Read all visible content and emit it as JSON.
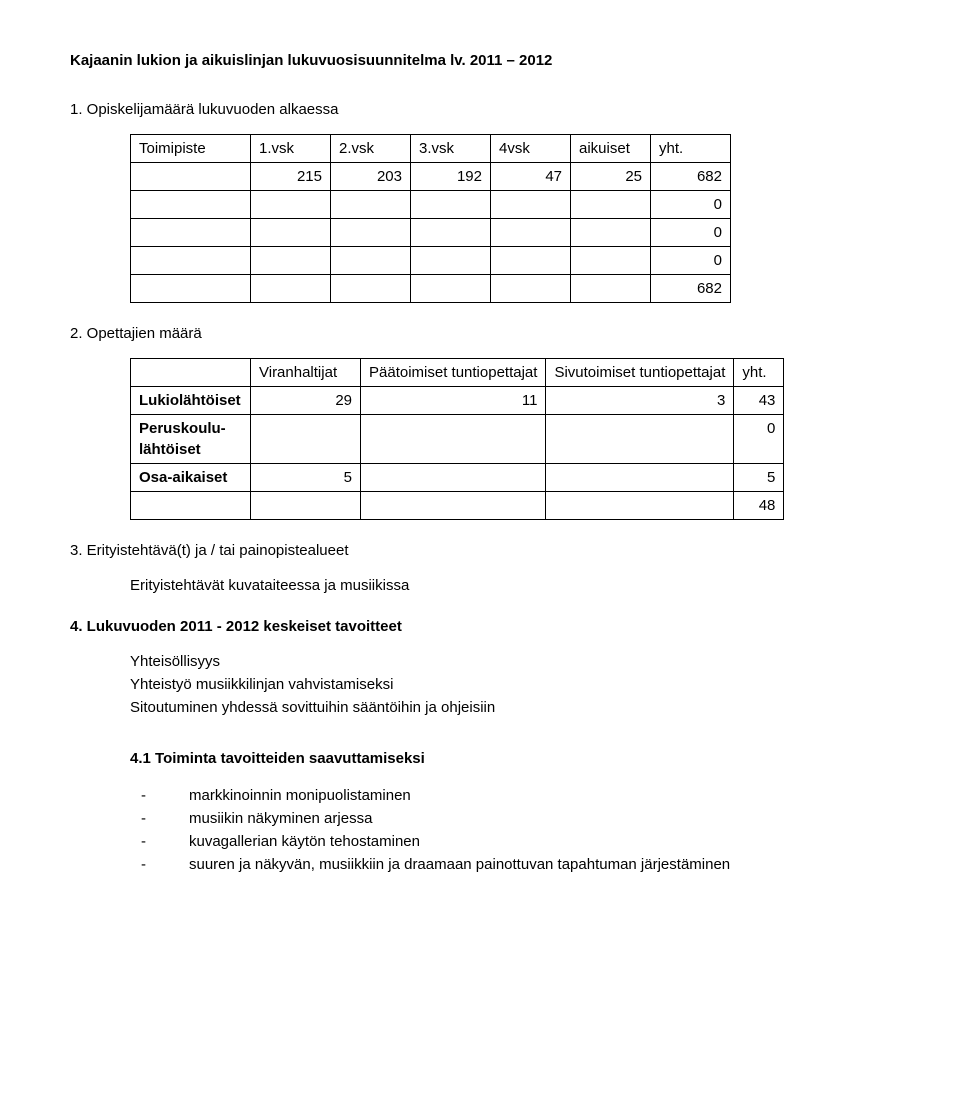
{
  "title": "Kajaanin lukion ja aikuislinjan lukuvuosisuunnitelma lv. 2011 – 2012",
  "sections": {
    "s1": "1. Opiskelijamäärä lukuvuoden alkaessa",
    "s2": "2. Opettajien määrä",
    "s3": "3. Erityistehtävä(t) ja / tai painopistealueet",
    "s4": "4. Lukuvuoden 2011 - 2012 keskeiset tavoitteet",
    "s41": "4.1 Toiminta tavoitteiden saavuttamiseksi"
  },
  "table1": {
    "headers": [
      "Toimipiste",
      "1.vsk",
      "2.vsk",
      "3.vsk",
      "4vsk",
      "aikuiset",
      "yht."
    ],
    "rows": [
      [
        "",
        "215",
        "203",
        "192",
        "47",
        "25",
        "682"
      ],
      [
        "",
        "",
        "",
        "",
        "",
        "",
        "0"
      ],
      [
        "",
        "",
        "",
        "",
        "",
        "",
        "0"
      ],
      [
        "",
        "",
        "",
        "",
        "",
        "",
        "0"
      ],
      [
        "",
        "",
        "",
        "",
        "",
        "",
        "682"
      ]
    ]
  },
  "table2": {
    "headers": [
      "",
      "Viranhaltijat",
      "Päätoimiset tuntiopettajat",
      "Sivutoimiset tuntiopettajat",
      "yht."
    ],
    "rows": [
      {
        "label": "Lukiolähtöiset",
        "c1": "29",
        "c2": "11",
        "c3": "3",
        "c4": "43",
        "labelBold": true
      },
      {
        "label": "Peruskoulu-lähtöiset",
        "c1": "",
        "c2": "",
        "c3": "",
        "c4": "0",
        "labelBold": true
      },
      {
        "label": "Osa-aikaiset",
        "c1": "5",
        "c2": "",
        "c3": "",
        "c4": "5",
        "labelBold": true
      },
      {
        "label": "",
        "c1": "",
        "c2": "",
        "c3": "",
        "c4": "48",
        "labelBold": false
      }
    ]
  },
  "s3_text": "Erityistehtävät kuvataiteessa ja musiikissa",
  "goals": [
    "Yhteisöllisyys",
    "Yhteistyö musiikkilinjan vahvistamiseksi",
    "Sitoutuminen yhdessä sovittuihin sääntöihin ja ohjeisiin"
  ],
  "bullets41": [
    "markkinoinnin monipuolistaminen",
    "musiikin näkyminen arjessa",
    "kuvagallerian käytön tehostaminen",
    "suuren ja näkyvän, musiikkiin ja draamaan painottuvan tapahtuman järjestäminen"
  ]
}
